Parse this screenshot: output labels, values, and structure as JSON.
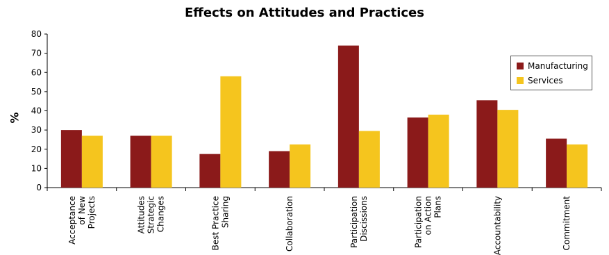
{
  "chart_data": {
    "type": "bar",
    "title": "Effects on Attitudes and Practices",
    "xlabel": "",
    "ylabel": "%",
    "ylim": [
      0,
      80
    ],
    "yticks": [
      0,
      10,
      20,
      30,
      40,
      50,
      60,
      70,
      80
    ],
    "categories": [
      [
        "Acceptance",
        "of New",
        "Projects"
      ],
      [
        "Attitudes",
        "Strategic",
        "Changes"
      ],
      [
        "Best Practice",
        "Sharing"
      ],
      [
        "Collaboration"
      ],
      [
        "Participation",
        "Discissions"
      ],
      [
        "Participation",
        "on Action",
        "Plans"
      ],
      [
        "Accountability"
      ],
      [
        "Commitment"
      ]
    ],
    "series": [
      {
        "name": "Manufacturing",
        "color": "#8B1A1A",
        "values": [
          30,
          27,
          17.5,
          19,
          74,
          36.5,
          45.5,
          25.5
        ]
      },
      {
        "name": "Services",
        "color": "#F5C51E",
        "values": [
          27,
          27,
          58,
          22.5,
          29.5,
          38,
          40.5,
          22.5
        ]
      }
    ],
    "grid": false,
    "legend": "top-right"
  }
}
